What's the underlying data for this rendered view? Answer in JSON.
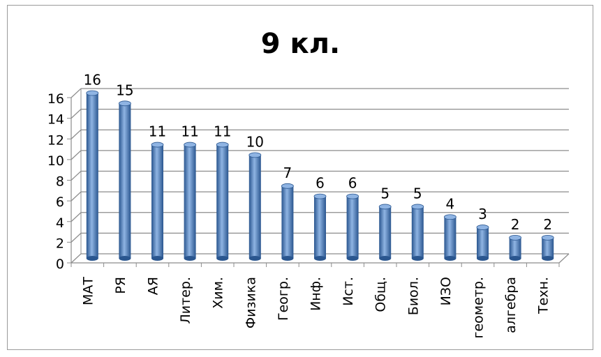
{
  "chart_data": {
    "type": "bar",
    "title": "9 кл.",
    "categories": [
      "МАТ",
      "РЯ",
      "АЯ",
      "Литер.",
      "Хим.",
      "Физика",
      "Геогр.",
      "Инф.",
      "Ист.",
      "Общ.",
      "Биол.",
      "ИЗО",
      "геометр.",
      "алгебра",
      "Техн."
    ],
    "values": [
      16,
      15,
      11,
      11,
      11,
      10,
      7,
      6,
      6,
      5,
      5,
      4,
      3,
      2,
      2
    ],
    "ylim": [
      0,
      16
    ],
    "yticks": [
      "0",
      "2",
      "4",
      "6",
      "8",
      "10",
      "12",
      "14",
      "16"
    ],
    "grid": true,
    "bar_color": "#4a7ebb",
    "bar_dark": "#2a568f",
    "bar_light": "#8fb4e3"
  }
}
